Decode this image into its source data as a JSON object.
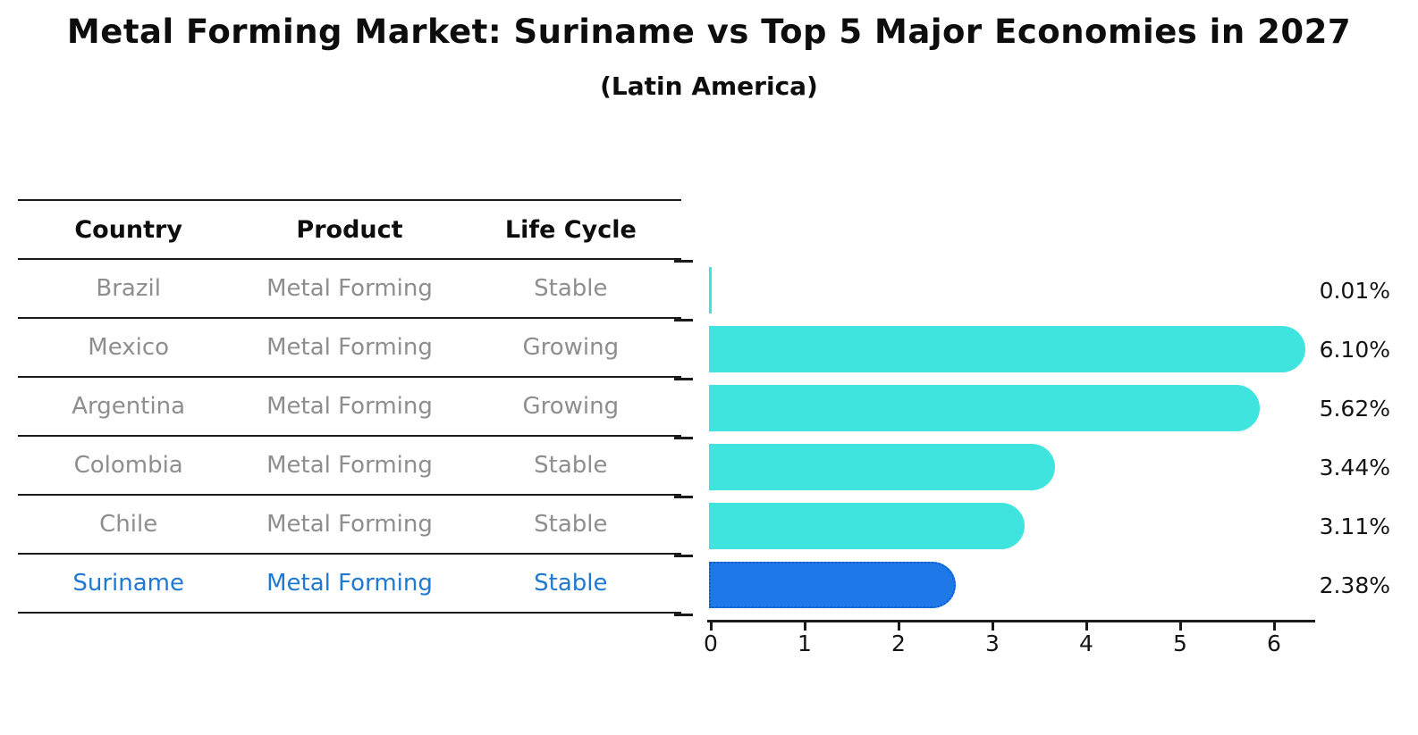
{
  "title": "Metal Forming Market: Suriname vs Top 5 Major Economies in 2027",
  "subtitle": "(Latin America)",
  "table": {
    "headers": [
      "Country",
      "Product",
      "Life Cycle"
    ],
    "rows": [
      {
        "country": "Brazil",
        "product": "Metal Forming",
        "life_cycle": "Stable"
      },
      {
        "country": "Mexico",
        "product": "Metal Forming",
        "life_cycle": "Growing"
      },
      {
        "country": "Argentina",
        "product": "Metal Forming",
        "life_cycle": "Growing"
      },
      {
        "country": "Colombia",
        "product": "Metal Forming",
        "life_cycle": "Stable"
      },
      {
        "country": "Chile",
        "product": "Metal Forming",
        "life_cycle": "Stable"
      },
      {
        "country": "Suriname",
        "product": "Metal Forming",
        "life_cycle": "Stable"
      }
    ],
    "highlight_row": "Suriname"
  },
  "chart_data": {
    "type": "bar",
    "orientation": "horizontal",
    "categories": [
      "Brazil",
      "Mexico",
      "Argentina",
      "Colombia",
      "Chile",
      "Suriname"
    ],
    "values": [
      0.01,
      6.1,
      5.62,
      3.44,
      3.11,
      2.38
    ],
    "value_labels": [
      "0.01%",
      "6.10%",
      "5.62%",
      "3.44%",
      "3.11%",
      "2.38%"
    ],
    "xticks": [
      "0",
      "1",
      "2",
      "3",
      "4",
      "5",
      "6"
    ],
    "xlim": [
      0,
      6.47
    ],
    "highlight_index": 5,
    "grid": false,
    "legend": "none"
  },
  "colors": {
    "bar": "#3FE4DE",
    "highlight_bar": "#1E78E8",
    "highlight_border": "#0D5ECD",
    "highlight_text": "#2079D0",
    "cell_text": "#8E8E8E",
    "ink": "#0D0D0D"
  }
}
